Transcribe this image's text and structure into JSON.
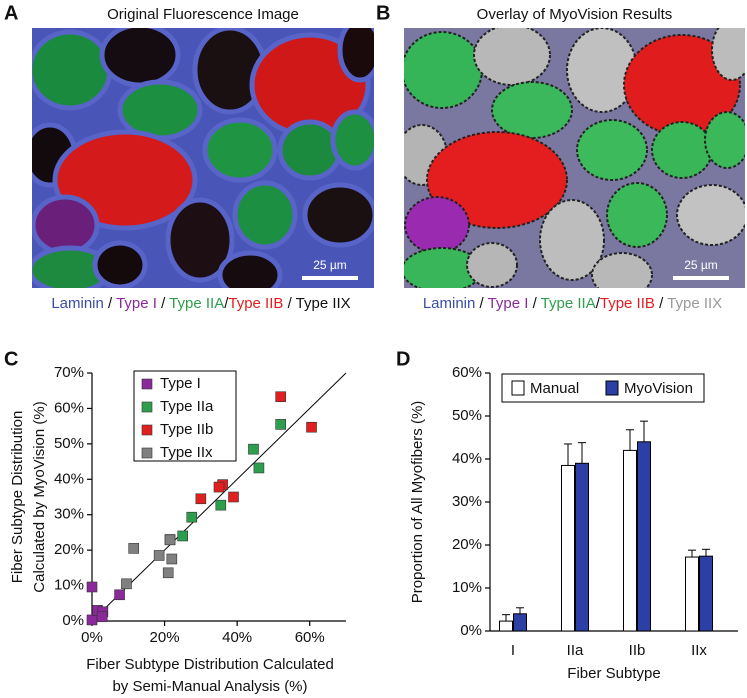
{
  "panels": [
    {
      "letter": "A",
      "title": "Original Fluorescence Image",
      "scale_bar": "25 µm",
      "caption": [
        {
          "text": "Laminin",
          "color": "#3b4ea6"
        },
        {
          "text": " / ",
          "color": "#111111"
        },
        {
          "text": "Type I",
          "color": "#8a2a9a"
        },
        {
          "text": " / ",
          "color": "#111111"
        },
        {
          "text": "Type IIA",
          "color": "#2e9e4e"
        },
        {
          "text": "/",
          "color": "#111111"
        },
        {
          "text": "Type IIB",
          "color": "#e02020"
        },
        {
          "text": " / ",
          "color": "#111111"
        },
        {
          "text": "Type IIX",
          "color": "#111111"
        }
      ]
    },
    {
      "letter": "B",
      "title": "Overlay of MyoVision Results",
      "scale_bar": "25 µm",
      "caption": [
        {
          "text": "Laminin",
          "color": "#3b4ea6"
        },
        {
          "text": " / ",
          "color": "#111111"
        },
        {
          "text": "Type I",
          "color": "#8a2a9a"
        },
        {
          "text": " / ",
          "color": "#111111"
        },
        {
          "text": "Type IIA",
          "color": "#2e9e4e"
        },
        {
          "text": "/",
          "color": "#111111"
        },
        {
          "text": "Type IIB",
          "color": "#e02020"
        },
        {
          "text": " / ",
          "color": "#111111"
        },
        {
          "text": "Type IIX",
          "color": "#999999"
        }
      ]
    }
  ],
  "chart_data": [
    {
      "type": "scatter",
      "letter": "C",
      "ylabel": [
        "Fiber Subtype Distribution",
        "Calculated by MyoVision (%)"
      ],
      "xlabel": [
        "Fiber Subtype Distribution Calculated",
        "by Semi-Manual Analysis (%)"
      ],
      "xlim": [
        0,
        70
      ],
      "ylim": [
        0,
        70
      ],
      "xticks": [
        {
          "value": 0,
          "label": "0%"
        },
        {
          "value": 20,
          "label": "20%"
        },
        {
          "value": 40,
          "label": "40%"
        },
        {
          "value": 60,
          "label": "60%"
        }
      ],
      "yticks": [
        {
          "value": 0,
          "label": "0%"
        },
        {
          "value": 10,
          "label": "10%"
        },
        {
          "value": 20,
          "label": "20%"
        },
        {
          "value": 30,
          "label": "30%"
        },
        {
          "value": 40,
          "label": "40%"
        },
        {
          "value": 50,
          "label": "50%"
        },
        {
          "value": 60,
          "label": "60%"
        },
        {
          "value": 70,
          "label": "70%"
        }
      ],
      "series": [
        {
          "name": "Type I",
          "color": "#8a2a9a",
          "x": [
            0,
            0,
            1.5,
            3,
            2.8,
            7.6
          ],
          "values": [
            9.6,
            0.3,
            3,
            2.6,
            1.2,
            7.4
          ]
        },
        {
          "name": "Type IIa",
          "color": "#2e9e4e",
          "x": [
            52,
            44.5,
            46,
            35.5,
            27.5,
            25,
            21.5
          ],
          "values": [
            55.5,
            48.5,
            43.2,
            32.7,
            29.3,
            24,
            23
          ]
        },
        {
          "name": "Type IIb",
          "color": "#e02020",
          "x": [
            52,
            60.5,
            36,
            35,
            39,
            30
          ],
          "values": [
            63.3,
            54.7,
            38.5,
            37.8,
            35,
            34.5
          ]
        },
        {
          "name": "Type IIx",
          "color": "#808080",
          "x": [
            11.5,
            9.5,
            18.5,
            22,
            21,
            21.5
          ],
          "values": [
            20.5,
            10.5,
            18.5,
            17.5,
            13.6,
            22.9
          ]
        }
      ]
    },
    {
      "type": "bar",
      "letter": "D",
      "ylabel": "Proportion of All Myofibers (%)",
      "xlabel": "Fiber Subtype",
      "categories": [
        "I",
        "IIa",
        "IIb",
        "IIx"
      ],
      "ylim": [
        0,
        60
      ],
      "yticks": [
        {
          "value": 0,
          "label": "0%"
        },
        {
          "value": 10,
          "label": "10%"
        },
        {
          "value": 20,
          "label": "20%"
        },
        {
          "value": 30,
          "label": "30%"
        },
        {
          "value": 40,
          "label": "40%"
        },
        {
          "value": 50,
          "label": "50%"
        },
        {
          "value": 60,
          "label": "60%"
        }
      ],
      "series": [
        {
          "name": "Manual",
          "color": "#ffffff",
          "values": [
            2.3,
            38.5,
            42,
            17.2
          ],
          "errors": [
            1.5,
            5,
            4.8,
            1.6
          ]
        },
        {
          "name": "MyoVision",
          "color": "#2b3fa5",
          "values": [
            4,
            39,
            44,
            17.4
          ],
          "errors": [
            1.4,
            4.8,
            4.8,
            1.6
          ]
        }
      ]
    }
  ]
}
